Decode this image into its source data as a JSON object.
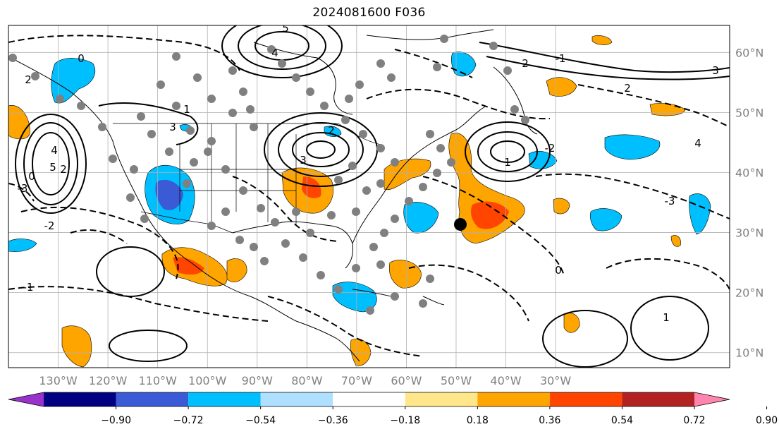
{
  "title": "2024081600 F036",
  "map": {
    "lon_range": [
      -140,
      5
    ],
    "lat_range": [
      7.5,
      64.5
    ],
    "lon_ticks": [
      {
        "lon": -130,
        "label": "130°W"
      },
      {
        "lon": -120,
        "label": "120°W"
      },
      {
        "lon": -110,
        "label": "110°W"
      },
      {
        "lon": -100,
        "label": "100°W"
      },
      {
        "lon": -90,
        "label": "90°W"
      },
      {
        "lon": -80,
        "label": "80°W"
      },
      {
        "lon": -70,
        "label": "70°W"
      },
      {
        "lon": -60,
        "label": "60°W"
      },
      {
        "lon": -50,
        "label": "50°W"
      },
      {
        "lon": -40,
        "label": "40°W"
      },
      {
        "lon": -30,
        "label": "30°W"
      }
    ],
    "lat_ticks": [
      {
        "lat": 60,
        "label": "60°N"
      },
      {
        "lat": 50,
        "label": "50°N"
      },
      {
        "lat": 40,
        "label": "40°N"
      },
      {
        "lat": 30,
        "label": "30°N"
      },
      {
        "lat": 20,
        "label": "20°N"
      },
      {
        "lat": 10,
        "label": "10°N"
      }
    ]
  },
  "colorbar": {
    "colors": [
      "#9932cc",
      "#000080",
      "#3a5ad6",
      "#00bfff",
      "#b0e0ff",
      "#ffffff",
      "#ffe68a",
      "#ffa500",
      "#ff4500",
      "#b22222",
      "#ff85b0"
    ],
    "labels": [
      "−0.90",
      "−0.72",
      "−0.54",
      "−0.36",
      "−0.18",
      "0.18",
      "0.36",
      "0.54",
      "0.72",
      "0.90"
    ]
  },
  "contour_labels": [
    "0",
    "2",
    "5",
    "4",
    "1",
    "3",
    "-1",
    "-2",
    "-3",
    "2",
    "0",
    "4",
    "5",
    "3",
    "2",
    "1",
    "-1",
    "-2",
    "0",
    "1",
    "2",
    "-3",
    "4",
    "3",
    "2"
  ]
}
